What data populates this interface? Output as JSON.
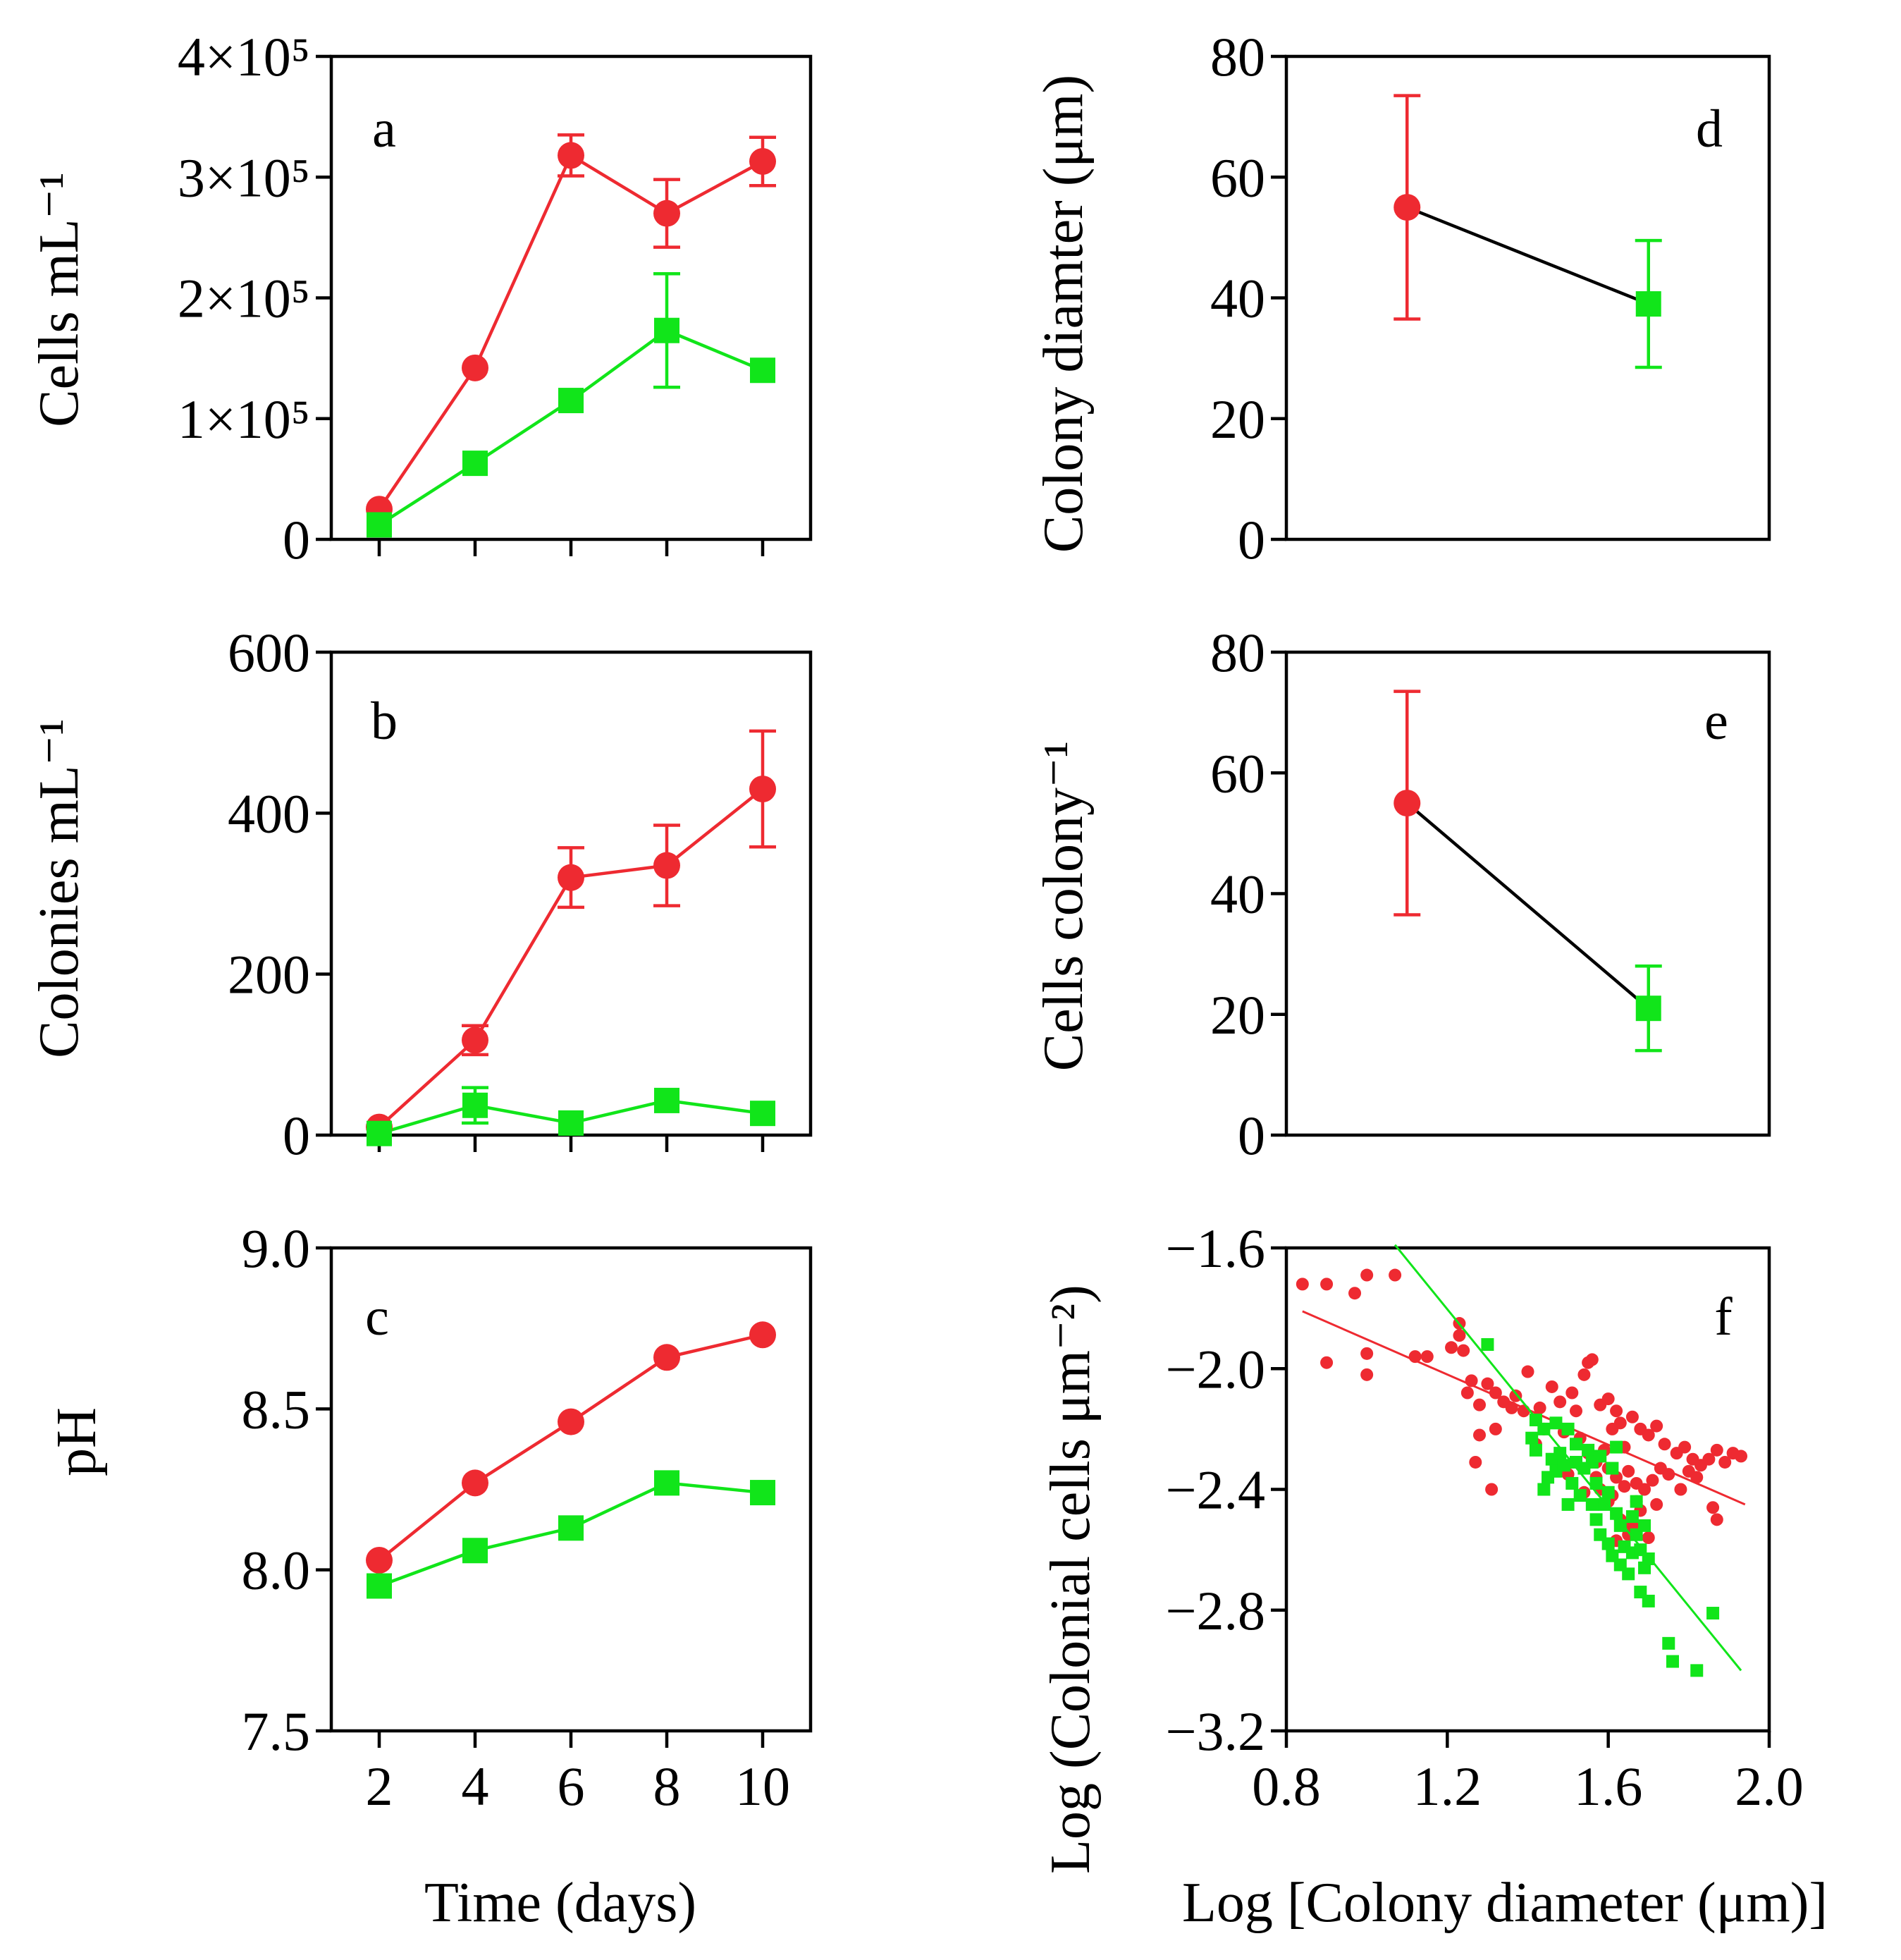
{
  "figure": {
    "colors": {
      "red": "#ee2a31",
      "green": "#11e51a",
      "connector": "#000000",
      "axis": "#000000"
    },
    "markers": {
      "red": "circle",
      "green": "square"
    }
  },
  "chart_data": [
    {
      "id": "a",
      "panel_label": "a",
      "type": "line",
      "title": "",
      "xlabel": "",
      "ylabel": "Cells mL⁻¹",
      "x": [
        2,
        4,
        6,
        8,
        10
      ],
      "xlim": [
        1,
        11
      ],
      "ylim": [
        0,
        400000
      ],
      "yticks": [
        0,
        100000,
        200000,
        300000,
        400000
      ],
      "ytick_labels": [
        "0",
        "1×10⁵",
        "2×10⁵",
        "3×10⁵",
        "4×10⁵"
      ],
      "xticks": [
        2,
        4,
        6,
        8,
        10
      ],
      "xtick_labels": [
        "",
        "",
        "",
        "",
        ""
      ],
      "series": [
        {
          "name": "red",
          "marker": "circle",
          "values": [
            25000,
            142000,
            318000,
            270000,
            313000
          ],
          "errors": [
            0,
            0,
            17000,
            28000,
            20000
          ]
        },
        {
          "name": "green",
          "marker": "square",
          "values": [
            12000,
            63000,
            115000,
            173000,
            140000
          ],
          "errors": [
            0,
            0,
            0,
            47000,
            0
          ]
        }
      ]
    },
    {
      "id": "b",
      "panel_label": "b",
      "type": "line",
      "title": "",
      "xlabel": "",
      "ylabel": "Colonies mL⁻¹",
      "x": [
        2,
        4,
        6,
        8,
        10
      ],
      "xlim": [
        1,
        11
      ],
      "ylim": [
        0,
        600
      ],
      "yticks": [
        0,
        200,
        400,
        600
      ],
      "ytick_labels": [
        "0",
        "200",
        "400",
        "600"
      ],
      "xticks": [
        2,
        4,
        6,
        8,
        10
      ],
      "xtick_labels": [
        "",
        "",
        "",
        "",
        ""
      ],
      "series": [
        {
          "name": "red",
          "marker": "circle",
          "values": [
            10,
            118,
            320,
            335,
            430
          ],
          "errors": [
            0,
            18,
            37,
            50,
            72
          ]
        },
        {
          "name": "green",
          "marker": "square",
          "values": [
            2,
            37,
            15,
            43,
            27
          ],
          "errors": [
            0,
            22,
            0,
            0,
            0
          ]
        }
      ]
    },
    {
      "id": "c",
      "panel_label": "c",
      "type": "line",
      "title": "",
      "xlabel": "Time (days)",
      "ylabel": "pH",
      "x": [
        2,
        4,
        6,
        8,
        10
      ],
      "xlim": [
        1,
        11
      ],
      "ylim": [
        7.5,
        9.0
      ],
      "yticks": [
        7.5,
        8.0,
        8.5,
        9.0
      ],
      "ytick_labels": [
        "7.5",
        "8.0",
        "8.5",
        "9.0"
      ],
      "xticks": [
        2,
        4,
        6,
        8,
        10
      ],
      "xtick_labels": [
        "2",
        "4",
        "6",
        "8",
        "10"
      ],
      "series": [
        {
          "name": "red",
          "marker": "circle",
          "values": [
            8.03,
            8.27,
            8.46,
            8.66,
            8.73
          ],
          "errors": [
            0,
            0,
            0,
            0,
            0
          ]
        },
        {
          "name": "green",
          "marker": "square",
          "values": [
            7.95,
            8.06,
            8.13,
            8.27,
            8.24
          ],
          "errors": [
            0,
            0,
            0,
            0,
            0
          ]
        }
      ]
    },
    {
      "id": "d",
      "panel_label": "d",
      "type": "line",
      "title": "",
      "xlabel": "",
      "ylabel": "Colony diamter (μm)",
      "x": [
        1,
        2
      ],
      "xlim": [
        0.5,
        2.5
      ],
      "ylim": [
        0,
        80
      ],
      "yticks": [
        0,
        20,
        40,
        60,
        80
      ],
      "ytick_labels": [
        "0",
        "20",
        "40",
        "60",
        "80"
      ],
      "xticks": [],
      "xtick_labels": [],
      "connector": true,
      "series": [
        {
          "name": "red",
          "marker": "circle",
          "values": [
            55,
            null
          ],
          "errors": [
            18.5,
            0
          ]
        },
        {
          "name": "green",
          "marker": "square",
          "values": [
            null,
            39
          ],
          "errors": [
            0,
            10.5
          ]
        }
      ]
    },
    {
      "id": "e",
      "panel_label": "e",
      "type": "line",
      "title": "",
      "xlabel": "",
      "ylabel": "Cells colony⁻¹",
      "x": [
        1,
        2
      ],
      "xlim": [
        0.5,
        2.5
      ],
      "ylim": [
        0,
        80
      ],
      "yticks": [
        0,
        20,
        40,
        60,
        80
      ],
      "ytick_labels": [
        "0",
        "20",
        "40",
        "60",
        "80"
      ],
      "xticks": [],
      "xtick_labels": [],
      "connector": true,
      "series": [
        {
          "name": "red",
          "marker": "circle",
          "values": [
            55,
            null
          ],
          "errors": [
            18.5,
            0
          ]
        },
        {
          "name": "green",
          "marker": "square",
          "values": [
            null,
            21
          ],
          "errors": [
            0,
            7
          ]
        }
      ]
    },
    {
      "id": "f",
      "panel_label": "f",
      "type": "scatter",
      "title": "",
      "xlabel": "Log [Colony diameter (μm)]",
      "ylabel": "Log (Colonial cells μm⁻²)",
      "xlim": [
        0.8,
        2.0
      ],
      "ylim": [
        -3.2,
        -1.6
      ],
      "xticks": [
        0.8,
        1.2,
        1.6,
        2.0
      ],
      "xtick_labels": [
        "0.8",
        "1.2",
        "1.6",
        "2.0"
      ],
      "yticks": [
        -3.2,
        -2.8,
        -2.4,
        -2.0,
        -1.6
      ],
      "ytick_labels": [
        "−3.2",
        "−2.8",
        "−2.4",
        "−2.0",
        "−1.6"
      ],
      "series": [
        {
          "name": "red",
          "marker": "circle",
          "fit": [
            [
              0.84,
              -1.81
            ],
            [
              1.94,
              -2.45
            ]
          ],
          "points": [
            [
              0.84,
              -1.72
            ],
            [
              0.9,
              -1.72
            ],
            [
              0.97,
              -1.75
            ],
            [
              0.9,
              -1.98
            ],
            [
              1.0,
              -1.95
            ],
            [
              1.0,
              -2.02
            ],
            [
              1.0,
              -1.69
            ],
            [
              1.07,
              -1.69
            ],
            [
              1.12,
              -1.96
            ],
            [
              1.15,
              -1.96
            ],
            [
              1.21,
              -1.93
            ],
            [
              1.23,
              -1.89
            ],
            [
              1.24,
              -1.94
            ],
            [
              1.23,
              -1.85
            ],
            [
              1.26,
              -2.04
            ],
            [
              1.25,
              -2.08
            ],
            [
              1.28,
              -2.12
            ],
            [
              1.3,
              -2.05
            ],
            [
              1.32,
              -2.08
            ],
            [
              1.34,
              -2.11
            ],
            [
              1.37,
              -2.09
            ],
            [
              1.39,
              -2.14
            ],
            [
              1.28,
              -2.22
            ],
            [
              1.27,
              -2.31
            ],
            [
              1.32,
              -2.2
            ],
            [
              1.31,
              -2.4
            ],
            [
              1.36,
              -2.13
            ],
            [
              1.4,
              -2.01
            ],
            [
              1.43,
              -2.13
            ],
            [
              1.46,
              -2.06
            ],
            [
              1.48,
              -2.11
            ],
            [
              1.51,
              -2.08
            ],
            [
              1.52,
              -2.14
            ],
            [
              1.54,
              -2.02
            ],
            [
              1.55,
              -1.98
            ],
            [
              1.56,
              -1.97
            ],
            [
              1.58,
              -2.12
            ],
            [
              1.6,
              -2.1
            ],
            [
              1.62,
              -2.14
            ],
            [
              1.63,
              -2.18
            ],
            [
              1.61,
              -2.2
            ],
            [
              1.64,
              -2.26
            ],
            [
              1.66,
              -2.16
            ],
            [
              1.68,
              -2.2
            ],
            [
              1.7,
              -2.22
            ],
            [
              1.72,
              -2.19
            ],
            [
              1.74,
              -2.25
            ],
            [
              1.77,
              -2.28
            ],
            [
              1.79,
              -2.26
            ],
            [
              1.81,
              -2.3
            ],
            [
              1.83,
              -2.32
            ],
            [
              1.85,
              -2.3
            ],
            [
              1.87,
              -2.27
            ],
            [
              1.89,
              -2.31
            ],
            [
              1.91,
              -2.28
            ],
            [
              1.93,
              -2.29
            ],
            [
              1.53,
              -2.23
            ],
            [
              1.55,
              -2.28
            ],
            [
              1.57,
              -2.31
            ],
            [
              1.59,
              -2.27
            ],
            [
              1.6,
              -2.33
            ],
            [
              1.62,
              -2.36
            ],
            [
              1.64,
              -2.39
            ],
            [
              1.65,
              -2.34
            ],
            [
              1.67,
              -2.38
            ],
            [
              1.69,
              -2.4
            ],
            [
              1.71,
              -2.37
            ],
            [
              1.73,
              -2.33
            ],
            [
              1.75,
              -2.35
            ],
            [
              1.58,
              -2.4
            ],
            [
              1.6,
              -2.44
            ],
            [
              1.63,
              -2.5
            ],
            [
              1.66,
              -2.52
            ],
            [
              1.68,
              -2.47
            ],
            [
              1.7,
              -2.56
            ],
            [
              1.65,
              -2.55
            ],
            [
              1.62,
              -2.57
            ],
            [
              1.54,
              -2.41
            ],
            [
              1.5,
              -2.35
            ],
            [
              1.47,
              -2.3
            ],
            [
              1.44,
              -2.2
            ],
            [
              1.42,
              -2.25
            ],
            [
              1.49,
              -2.21
            ],
            [
              1.57,
              -2.36
            ],
            [
              1.61,
              -2.42
            ],
            [
              1.67,
              -2.44
            ],
            [
              1.72,
              -2.45
            ],
            [
              1.78,
              -2.4
            ],
            [
              1.82,
              -2.36
            ],
            [
              1.86,
              -2.46
            ],
            [
              1.87,
              -2.5
            ],
            [
              1.8,
              -2.34
            ]
          ]
        },
        {
          "name": "green",
          "marker": "square",
          "fit": [
            [
              1.07,
              -1.59
            ],
            [
              1.93,
              -3.0
            ]
          ],
          "points": [
            [
              1.3,
              -1.92
            ],
            [
              1.42,
              -2.17
            ],
            [
              1.44,
              -2.2
            ],
            [
              1.41,
              -2.23
            ],
            [
              1.42,
              -2.27
            ],
            [
              1.46,
              -2.3
            ],
            [
              1.48,
              -2.28
            ],
            [
              1.45,
              -2.36
            ],
            [
              1.47,
              -2.34
            ],
            [
              1.5,
              -2.2
            ],
            [
              1.52,
              -2.25
            ],
            [
              1.49,
              -2.32
            ],
            [
              1.51,
              -2.38
            ],
            [
              1.53,
              -2.42
            ],
            [
              1.5,
              -2.45
            ],
            [
              1.55,
              -2.27
            ],
            [
              1.56,
              -2.31
            ],
            [
              1.58,
              -2.29
            ],
            [
              1.57,
              -2.38
            ],
            [
              1.59,
              -2.45
            ],
            [
              1.6,
              -2.41
            ],
            [
              1.62,
              -2.26
            ],
            [
              1.61,
              -2.33
            ],
            [
              1.63,
              -2.52
            ],
            [
              1.58,
              -2.55
            ],
            [
              1.6,
              -2.58
            ],
            [
              1.61,
              -2.62
            ],
            [
              1.64,
              -2.59
            ],
            [
              1.63,
              -2.65
            ],
            [
              1.66,
              -2.61
            ],
            [
              1.67,
              -2.55
            ],
            [
              1.68,
              -2.6
            ],
            [
              1.69,
              -2.66
            ],
            [
              1.7,
              -2.63
            ],
            [
              1.68,
              -2.74
            ],
            [
              1.7,
              -2.77
            ],
            [
              1.65,
              -2.68
            ],
            [
              1.75,
              -2.91
            ],
            [
              1.76,
              -2.97
            ],
            [
              1.82,
              -3.0
            ],
            [
              1.86,
              -2.81
            ],
            [
              1.44,
              -2.4
            ],
            [
              1.54,
              -2.33
            ],
            [
              1.56,
              -2.45
            ],
            [
              1.66,
              -2.49
            ],
            [
              1.69,
              -2.52
            ],
            [
              1.47,
              -2.18
            ],
            [
              1.52,
              -2.31
            ],
            [
              1.62,
              -2.48
            ],
            [
              1.67,
              -2.44
            ],
            [
              1.57,
              -2.5
            ]
          ]
        }
      ]
    }
  ]
}
